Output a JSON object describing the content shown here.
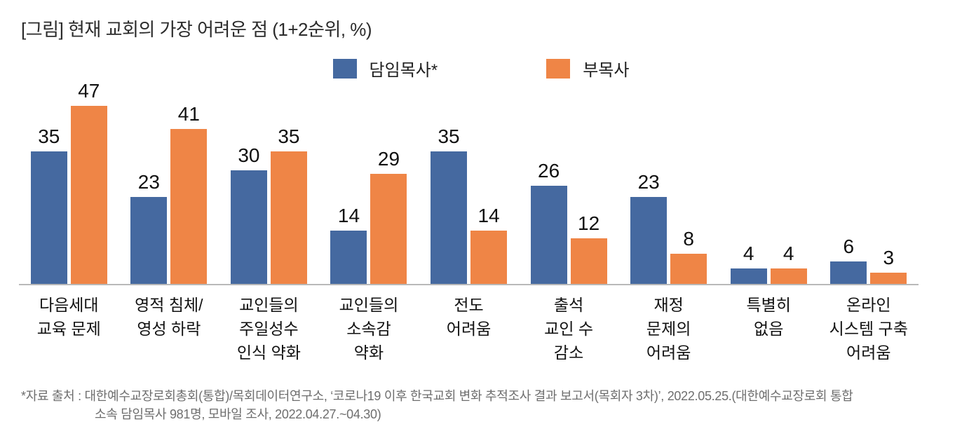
{
  "title": "[그림] 현재 교회의 가장 어려운 점 (1+2순위, %)",
  "legend": {
    "senior_pastor_label": "담임목사*",
    "associate_pastor_label": "부목사"
  },
  "colors": {
    "senior_pastor": "#4569A0",
    "associate_pastor": "#EF8546",
    "axis_line": "#b9b9b9",
    "footnote_text": "#6e6e6e"
  },
  "chart_data": {
    "type": "bar",
    "title": "[그림] 현재 교회의 가장 어려운 점 (1+2순위, %)",
    "unit": "%",
    "grid": false,
    "legend_position": "top",
    "value_labels": true,
    "ylim": [
      0,
      50
    ],
    "categories": [
      "다음세대\n교육 문제",
      "영적 침체/\n영성 하락",
      "교인들의\n주일성수\n인식 약화",
      "교인들의\n소속감\n약화",
      "전도\n어려움",
      "출석\n교인 수\n감소",
      "재정\n문제의\n어려움",
      "특별히\n없음",
      "온라인\n시스템 구축\n어려움"
    ],
    "series": [
      {
        "name": "담임목사*",
        "color": "#4569A0",
        "values": [
          35,
          23,
          30,
          14,
          35,
          26,
          23,
          4,
          6
        ]
      },
      {
        "name": "부목사",
        "color": "#EF8546",
        "values": [
          47,
          41,
          35,
          29,
          14,
          12,
          8,
          4,
          3
        ]
      }
    ]
  },
  "footnote": {
    "line1": "*자료 출처 : 대한예수교장로회총회(통합)/목회데이터연구소, ‘코로나19 이후 한국교회 변화 추적조사 결과 보고서(목회자 3차)’, 2022.05.25.(대한예수교장로회 통합",
    "line2": "소속 담임목사 981명, 모바일 조사, 2022.04.27.~04.30)"
  }
}
